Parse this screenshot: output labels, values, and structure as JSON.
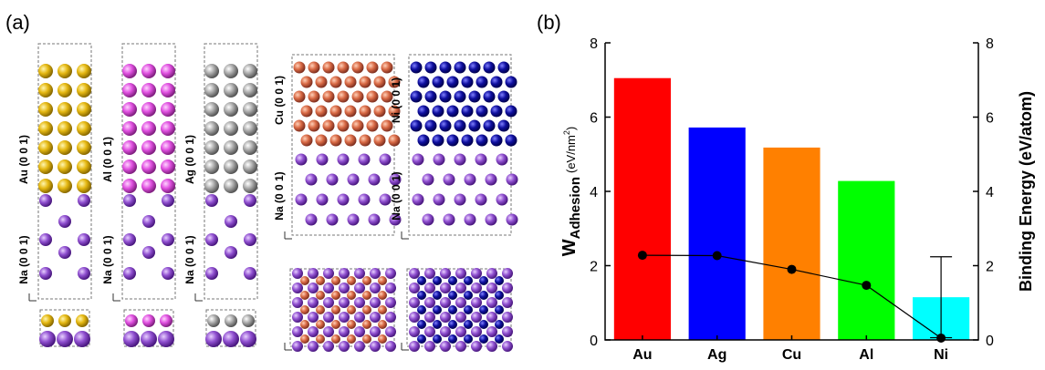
{
  "panel_a": {
    "label": "(a)",
    "structure_labels": [
      "Au (0 0 1)",
      "Na (0 0 1)",
      "Al (0 0 1)",
      "Na (0 0 1)",
      "Ag (0 0 1)",
      "Na (0 0 1)",
      "Cu (0 0 1)",
      "Na (0 0 1)",
      "Ni (0 0 1)",
      "Na (0 0 1)"
    ]
  },
  "chart_data": {
    "type": "bar",
    "panel_label": "(b)",
    "y_label": {
      "symbol": "W",
      "subscript": "Adhesion",
      "unit": "(eV/nm",
      "unit_sup": "2",
      "unit_end": ")"
    },
    "y2_label": "Binding Energy (eV/atom)",
    "categories": [
      "Au",
      "Ag",
      "Cu",
      "Al",
      "Ni"
    ],
    "series": [
      {
        "colors": [
          "#ff0000",
          "#0000ff",
          "#ff8000",
          "#00ff00",
          "#00ffff"
        ],
        "values": [
          7.05,
          5.72,
          5.18,
          4.28,
          1.15
        ],
        "errors": [
          null,
          null,
          null,
          null,
          1.09
        ]
      },
      {
        "type": "line",
        "axis": "y2",
        "color": "#000000",
        "values": [
          2.28,
          2.27,
          1.9,
          1.47,
          0.05
        ]
      }
    ],
    "ylim": [
      0,
      8
    ],
    "yticks": [
      0,
      2,
      4,
      6,
      8
    ],
    "y2lim": [
      0,
      8
    ],
    "y2ticks": [
      0,
      2,
      4,
      6,
      8
    ]
  }
}
